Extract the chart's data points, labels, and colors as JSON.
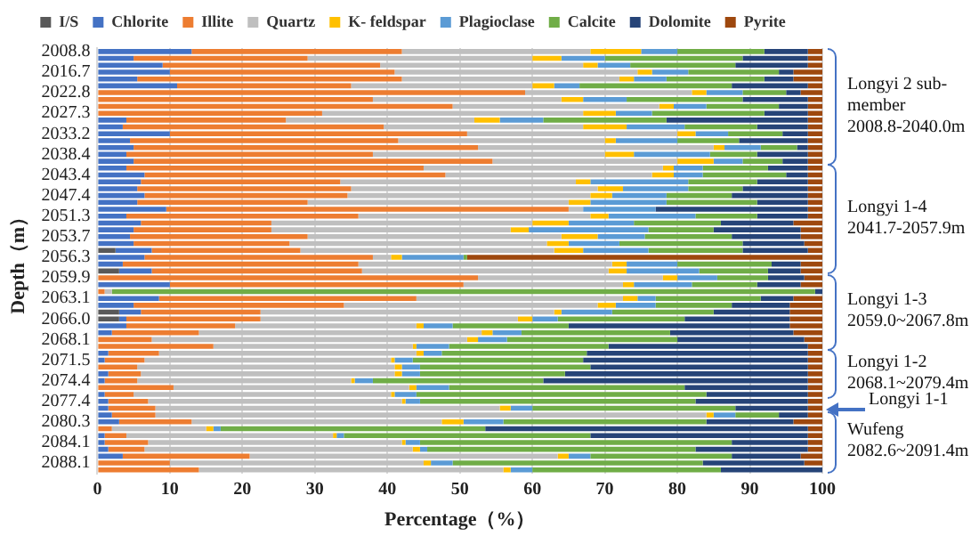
{
  "chart_data": {
    "type": "bar",
    "orientation": "horizontal",
    "stacked": true,
    "xlabel": "Percentage（%）",
    "ylabel": "Depth（m）",
    "categories": [
      "2008.8",
      null,
      null,
      "2016.7",
      null,
      null,
      "2022.8",
      null,
      null,
      "2027.3",
      null,
      null,
      "2033.2",
      null,
      null,
      "2038.4",
      null,
      null,
      "2043.4",
      null,
      null,
      "2047.4",
      null,
      null,
      "2051.3",
      null,
      null,
      "2053.7",
      null,
      null,
      "2056.3",
      null,
      null,
      "2059.9",
      null,
      null,
      "2063.1",
      null,
      null,
      "2066.0",
      null,
      null,
      "2068.1",
      null,
      null,
      "2071.5",
      null,
      null,
      "2074.4",
      null,
      null,
      "2077.4",
      null,
      null,
      "2080.3",
      null,
      null,
      "2084.1",
      null,
      null,
      "2088.1",
      null
    ],
    "xlim": [
      0,
      100
    ],
    "xticks": [
      0,
      10,
      20,
      30,
      40,
      50,
      60,
      70,
      80,
      90,
      100
    ],
    "grid": "x",
    "legend": "top",
    "series": [
      {
        "name": "I/S",
        "color": "#595959",
        "values": [
          0,
          0,
          0,
          0,
          0,
          0,
          0,
          0,
          0,
          0,
          0,
          0,
          0,
          0,
          0,
          0,
          0,
          0,
          0,
          0,
          0,
          0,
          0,
          0,
          0,
          0,
          0,
          0,
          0,
          2.5,
          0,
          0,
          3,
          0,
          0,
          0,
          0,
          0,
          3,
          3,
          0,
          0,
          0,
          0,
          0,
          0,
          0,
          0,
          0,
          0,
          0,
          0,
          0,
          0,
          0,
          0,
          0,
          0,
          0,
          0,
          0,
          0
        ]
      },
      {
        "name": "Chlorite",
        "color": "#4472c4",
        "values": [
          13,
          5,
          9,
          10,
          5.5,
          11,
          0,
          0,
          0,
          0,
          4,
          3.5,
          10,
          4.5,
          5,
          4,
          5,
          4,
          6.5,
          6,
          5.5,
          6.5,
          5.5,
          9.5,
          4,
          6,
          5,
          4.5,
          5,
          5,
          6.5,
          3.5,
          4.5,
          0,
          10,
          0,
          8.5,
          5,
          3,
          1,
          4,
          2,
          0,
          0,
          1.5,
          1,
          0,
          1.5,
          1,
          0,
          1,
          1.5,
          1.5,
          2,
          3,
          0,
          1,
          1,
          1.5,
          3.5,
          0,
          0
        ]
      },
      {
        "name": "Illite",
        "color": "#ed7d31",
        "values": [
          29,
          24,
          30,
          31,
          36.5,
          24,
          59,
          38,
          49,
          31,
          22,
          36,
          41,
          37,
          47.5,
          34,
          49.5,
          41,
          41.5,
          27.5,
          29.5,
          28,
          23.5,
          55.5,
          32,
          18,
          19,
          24.5,
          21.5,
          20.5,
          31.5,
          32.5,
          29,
          52.5,
          40.5,
          1,
          35.5,
          29,
          16.5,
          18.5,
          15,
          12,
          7.5,
          16,
          7,
          5.5,
          5.5,
          4.5,
          4.5,
          10.5,
          4,
          5.5,
          6.5,
          6,
          10,
          2,
          3,
          6,
          5,
          17.5,
          10,
          14
        ]
      },
      {
        "name": "Quartz",
        "color": "#bfbfbf",
        "values": [
          26,
          31,
          28,
          33.5,
          30,
          25,
          23,
          26,
          28.5,
          36,
          26,
          27.5,
          29,
          28.5,
          32.5,
          32,
          25.5,
          33,
          28.5,
          32.5,
          34,
          33.5,
          36,
          2,
          32,
          36,
          33,
          35,
          35.5,
          35,
          2.5,
          35,
          34,
          25.5,
          22,
          1,
          28.5,
          35,
          40.5,
          35.5,
          25,
          39,
          43.5,
          27.5,
          35.5,
          34,
          35.5,
          35,
          29.5,
          32.5,
          35.5,
          35,
          47.5,
          76,
          34.5,
          13,
          28.5,
          35,
          37,
          42.5,
          35,
          42
        ]
      },
      {
        "name": "K- feldspar",
        "color": "#ffc000",
        "values": [
          7,
          4,
          2,
          2,
          2,
          3,
          2,
          3,
          2,
          4.5,
          3.5,
          6,
          2.5,
          1.5,
          1.5,
          4,
          5,
          1.5,
          3,
          2,
          3.5,
          3,
          3,
          0,
          2.5,
          5,
          2.5,
          5,
          3,
          4,
          1.5,
          2,
          2.5,
          2,
          1.5,
          0,
          2,
          2.5,
          1,
          2,
          1,
          1.5,
          1.5,
          0.5,
          1,
          0.5,
          1,
          1,
          0.5,
          1,
          0.5,
          0.5,
          1.5,
          1,
          3,
          1,
          0.5,
          0.5,
          1,
          1.5,
          1,
          1
        ]
      },
      {
        "name": "Plagioclase",
        "color": "#5b9bd5",
        "values": [
          5,
          6,
          4.5,
          5,
          4.5,
          3.5,
          5,
          6,
          4.5,
          5,
          6,
          8,
          4.5,
          8.5,
          5,
          10.5,
          4,
          4,
          4,
          13.5,
          9,
          7.5,
          10.5,
          10,
          12,
          9,
          16.5,
          6.5,
          7,
          9,
          8.5,
          7,
          10,
          5.5,
          8,
          0,
          2.5,
          5.5,
          7,
          3.5,
          4,
          4,
          4,
          4.5,
          2.5,
          2.5,
          2.5,
          2.5,
          2.5,
          4.5,
          3,
          2,
          3,
          3,
          5.5,
          1,
          1,
          2,
          1,
          3,
          3,
          3
        ]
      },
      {
        "name": "Calcite",
        "color": "#70ad47",
        "values": [
          12,
          19,
          14.5,
          12.5,
          13.5,
          21,
          6,
          16,
          10,
          15.5,
          17,
          10,
          7.5,
          8.5,
          5,
          6.5,
          5.5,
          9,
          11.5,
          9.5,
          7.5,
          9,
          12.5,
          0,
          8.5,
          12,
          9,
          12,
          17,
          13,
          0.5,
          13,
          9.5,
          7,
          9,
          97,
          14.5,
          10.5,
          14,
          17.5,
          16,
          20.5,
          23.5,
          22,
          20,
          23.5,
          23.5,
          20,
          23.5,
          32.5,
          40,
          38,
          28,
          6,
          28,
          36.5,
          34,
          43,
          37,
          19.5,
          34.5,
          26
        ]
      },
      {
        "name": "Dolomite",
        "color": "#264478",
        "values": [
          6,
          9,
          10,
          2,
          4,
          10.5,
          2,
          9,
          4,
          6,
          19.5,
          7,
          3.5,
          9.5,
          1.5,
          7,
          3.5,
          5.5,
          3,
          7,
          9,
          10.5,
          7,
          21,
          7,
          10,
          12,
          9.5,
          8.5,
          9,
          0,
          4,
          4.5,
          5,
          6,
          1,
          4.5,
          8,
          10.5,
          14.5,
          30.5,
          17,
          17.5,
          27.5,
          30.5,
          31,
          30,
          33.5,
          36.5,
          17,
          14,
          15.5,
          10,
          4,
          12,
          44.5,
          30,
          10.5,
          15.5,
          9.5,
          14,
          14
        ]
      },
      {
        "name": "Pyrite",
        "color": "#9e480e",
        "values": [
          2,
          2,
          2,
          4,
          4,
          2,
          3,
          2,
          2,
          2,
          2,
          2,
          2,
          2,
          2,
          2,
          2,
          2,
          2,
          2,
          2,
          2,
          2,
          2,
          2,
          4,
          3,
          3,
          2.5,
          2,
          49,
          3,
          3,
          2.5,
          3,
          0,
          4,
          4.5,
          4.5,
          4.5,
          4.5,
          4,
          2.5,
          2,
          2,
          2,
          2,
          2,
          2,
          2,
          2,
          2,
          2,
          2,
          4,
          2,
          2,
          2,
          2,
          3,
          2.5,
          0
        ]
      }
    ],
    "annotations": [
      "Longyi 2 sub-\nmember\n2008.8-2040.0m",
      "Longyi 1-4\n2041.7-2057.9m",
      "Longyi 1-3\n2059.0~2067.8m",
      "Longyi 1-2\n2068.1~2079.4m",
      "Longyi 1-1",
      "Wufeng\n2082.6~2091.4m"
    ]
  }
}
